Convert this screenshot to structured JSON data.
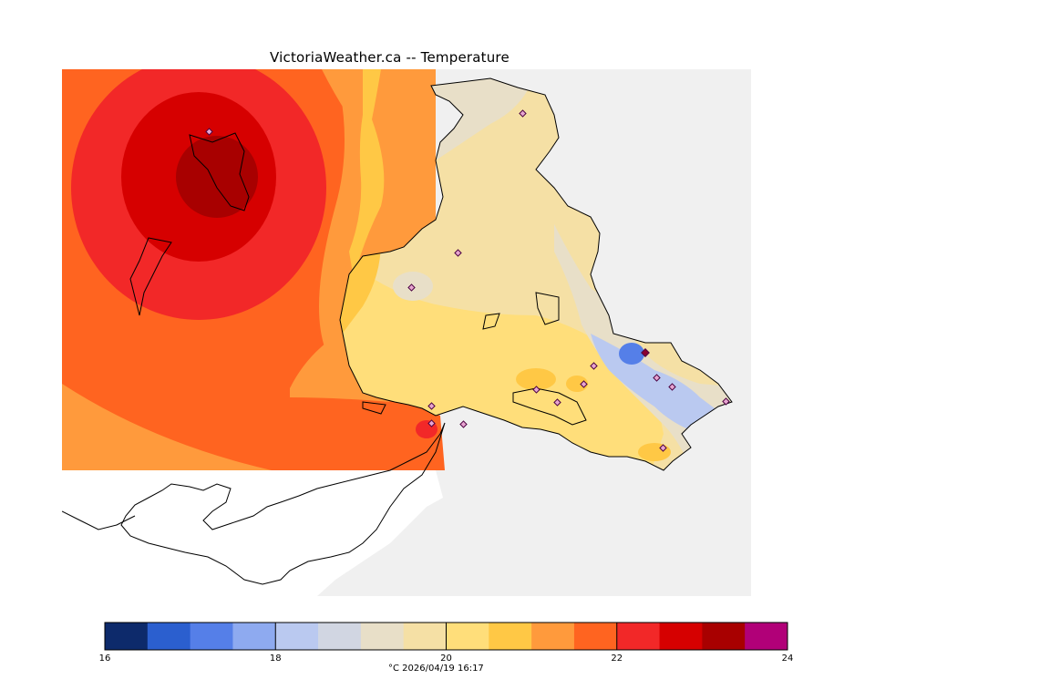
{
  "title": "VictoriaWeather.ca -- Temperature",
  "caption": "°C  2026/04/19 16:17",
  "legend": {
    "min": 16,
    "max": 24,
    "colors": [
      "#0d2a6b",
      "#2b5fcf",
      "#557fe8",
      "#8eaaf0",
      "#bac9f0",
      "#d1d6e2",
      "#e8dfc8",
      "#f5e0a5",
      "#ffde7a",
      "#ffc845",
      "#ff9a3c",
      "#ff6420",
      "#f22828",
      "#d60000",
      "#a80000",
      "#b10078"
    ],
    "ticks": [
      {
        "value": 16,
        "label": "16"
      },
      {
        "value": 18,
        "label": "18"
      },
      {
        "value": 20,
        "label": "20"
      },
      {
        "value": 22,
        "label": "22"
      },
      {
        "value": 24,
        "label": "24"
      }
    ]
  },
  "map": {
    "background": "#f0f0f0",
    "no_data_color": "#ffffff"
  }
}
